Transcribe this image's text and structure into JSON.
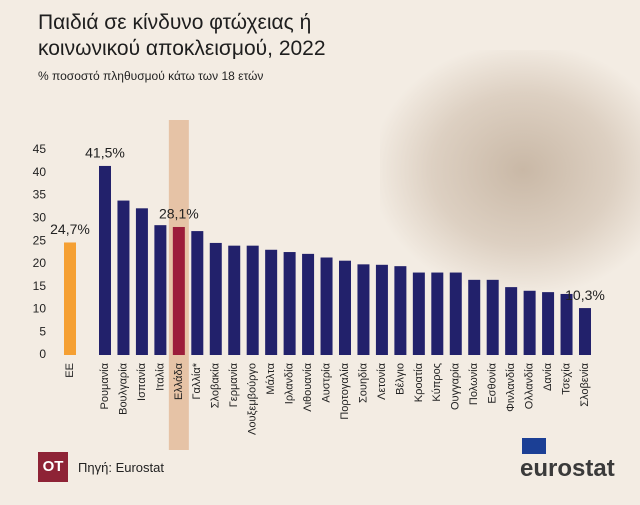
{
  "chart_data": {
    "type": "bar",
    "title": "Παιδιά σε κίνδυνο φτώχειας ή κοινωνικού αποκλεισμού, 2022",
    "subtitle": "% ποσοστό πληθυσμού κάτω των 18 ετών",
    "categories": [
      "ΕΕ",
      "Ρουμανία",
      "Βουλγαρία",
      "Ισπανία",
      "Ιταλία",
      "Ελλάδα",
      "Γαλλία*",
      "Σλοβακία",
      "Γερμανία",
      "Λουξεμβούργο",
      "Μάλτα",
      "Ιρλανδία",
      "Λιθουανία",
      "Αυστρία",
      "Πορτογαλία",
      "Σουηδία",
      "Λετονία",
      "Βέλγιο",
      "Κροατία",
      "Κύπρος",
      "Ουγγαρία",
      "Πολωνία",
      "Εσθονία",
      "Φινλανδία",
      "Ολλανδία",
      "Δανία",
      "Τσεχία",
      "Σλοβενία"
    ],
    "values": [
      24.7,
      41.5,
      33.9,
      32.2,
      28.5,
      28.1,
      27.2,
      24.6,
      24.0,
      24.0,
      23.1,
      22.6,
      22.2,
      21.4,
      20.7,
      19.9,
      19.8,
      19.5,
      18.1,
      18.1,
      18.1,
      16.5,
      16.5,
      14.9,
      14.1,
      13.8,
      13.4,
      10.3
    ],
    "value_labels": [
      "24,7%",
      "41,5%",
      null,
      null,
      null,
      "28,1%",
      null,
      null,
      null,
      null,
      null,
      null,
      null,
      null,
      null,
      null,
      null,
      null,
      null,
      null,
      null,
      null,
      null,
      null,
      null,
      null,
      null,
      "10,3%"
    ],
    "colors": [
      "#f5a033",
      "#22216b",
      "#22216b",
      "#22216b",
      "#22216b",
      "#9c1c3a",
      "#22216b",
      "#22216b",
      "#22216b",
      "#22216b",
      "#22216b",
      "#22216b",
      "#22216b",
      "#22216b",
      "#22216b",
      "#22216b",
      "#22216b",
      "#22216b",
      "#22216b",
      "#22216b",
      "#22216b",
      "#22216b",
      "#22216b",
      "#22216b",
      "#22216b",
      "#22216b",
      "#22216b",
      "#22216b"
    ],
    "highlight_index": 5,
    "ylim": [
      0,
      45
    ],
    "yticks": [
      0,
      5,
      10,
      15,
      20,
      25,
      30,
      35,
      40,
      45
    ],
    "grid": false
  },
  "footer": {
    "logo": "OT",
    "source": "Πηγή: Eurostat",
    "brand": "eurostat"
  }
}
